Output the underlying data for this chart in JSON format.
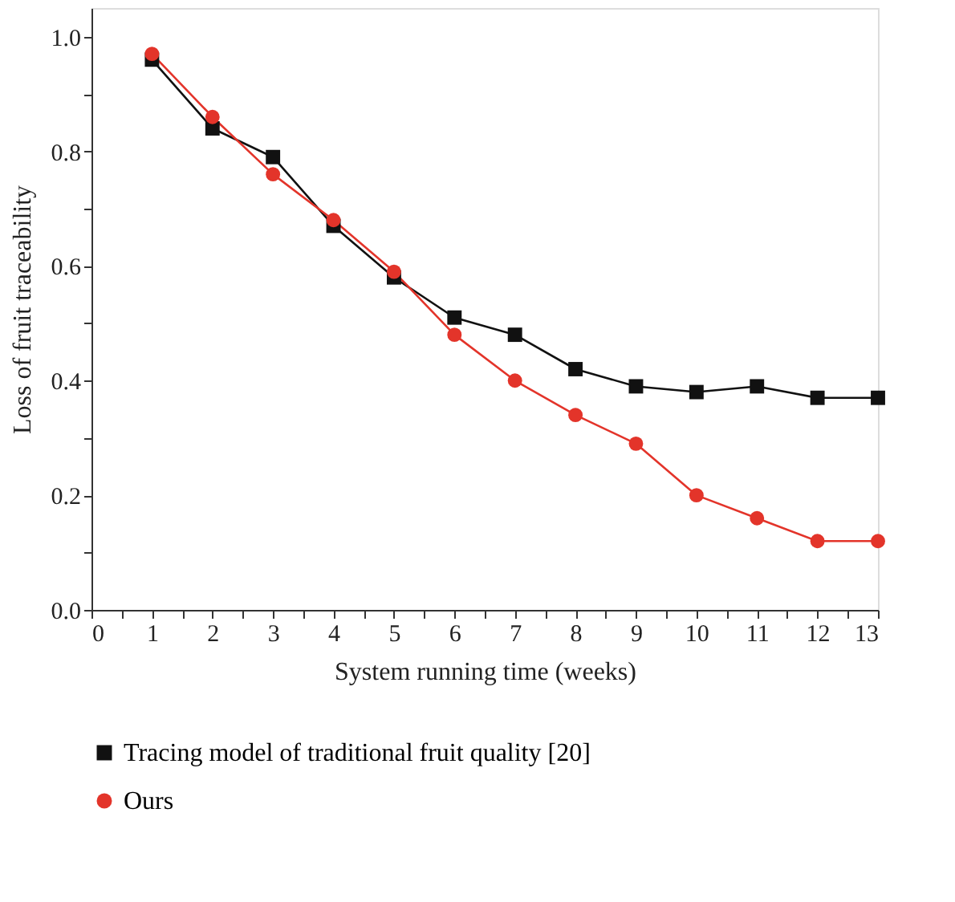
{
  "chart_data": {
    "type": "line",
    "xlabel": "System running time (weeks)",
    "ylabel": "Loss of fruit traceability",
    "x": [
      1,
      2,
      3,
      4,
      5,
      6,
      7,
      8,
      9,
      10,
      11,
      12,
      13
    ],
    "series": [
      {
        "name": "Tracing model of traditional fruit quality [20]",
        "color": "#111111",
        "marker": "square",
        "values": [
          0.96,
          0.84,
          0.79,
          0.67,
          0.58,
          0.51,
          0.48,
          0.42,
          0.39,
          0.38,
          0.39,
          0.37,
          0.37
        ]
      },
      {
        "name": "Ours",
        "color": "#e3342a",
        "marker": "circle",
        "values": [
          0.97,
          0.86,
          0.76,
          0.68,
          0.59,
          0.48,
          0.4,
          0.34,
          0.29,
          0.2,
          0.16,
          0.12,
          0.12
        ]
      }
    ],
    "xlim": [
      0,
      13
    ],
    "xticks": [
      0,
      {
        "value": 0.5,
        "label": null
      },
      1,
      {
        "value": 1.5,
        "label": null
      },
      2,
      {
        "value": 2.5,
        "label": null
      },
      3,
      {
        "value": 3.5,
        "label": null
      },
      4,
      {
        "value": 4.5,
        "label": null
      },
      5,
      {
        "value": 5.5,
        "label": null
      },
      6,
      {
        "value": 6.5,
        "label": null
      },
      7,
      {
        "value": 7.5,
        "label": null
      },
      8,
      {
        "value": 8.5,
        "label": null
      },
      9,
      {
        "value": 9.5,
        "label": null
      },
      10,
      {
        "value": 10.5,
        "label": null
      },
      11,
      {
        "value": 11.5,
        "label": null
      },
      12,
      {
        "value": 12.5,
        "label": null
      },
      13
    ],
    "ylim": [
      0,
      1.05
    ],
    "yticks": [
      {
        "value": 0,
        "label": "0.0"
      },
      {
        "value": 0.1,
        "label": null
      },
      0.2,
      {
        "value": 0.3,
        "label": null
      },
      0.4,
      {
        "value": 0.5,
        "label": null
      },
      0.6,
      {
        "value": 0.7,
        "label": null
      },
      0.8,
      {
        "value": 0.9,
        "label": null
      },
      {
        "value": 1,
        "label": "1.0"
      }
    ],
    "grid": false,
    "legend": "bottom",
    "line_style": "solid"
  }
}
